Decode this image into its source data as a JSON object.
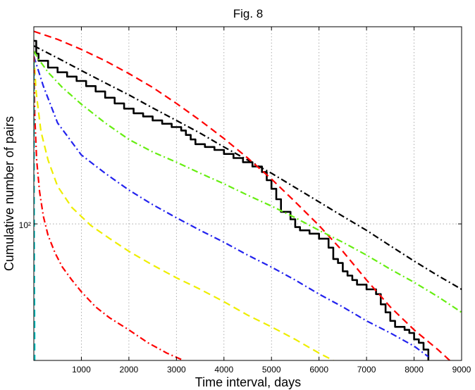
{
  "chart_data": {
    "type": "line",
    "title": "Fig. 8",
    "xlabel": "Time interval, days",
    "ylabel": "Cumulative number of pairs",
    "xlim": [
      0,
      9000
    ],
    "ylim": [
      42,
      350
    ],
    "yscale": "log",
    "grid": true,
    "x_ticks": [
      1000,
      2000,
      3000,
      4000,
      5000,
      6000,
      7000,
      8000,
      9000
    ],
    "x_tick_labels": [
      "1000",
      "2000",
      "3000",
      "4000",
      "5000",
      "6000",
      "7000",
      "8000",
      "9000"
    ],
    "y_ticks": [
      100
    ],
    "y_tick_labels": [
      "10²"
    ],
    "series": [
      {
        "color": "#000000",
        "style": "solid",
        "x": [
          0,
          50,
          100,
          300,
          500,
          700,
          900,
          1100,
          1300,
          1500,
          1700,
          1900,
          2100,
          2300,
          2500,
          2700,
          2900,
          3100,
          3200,
          3300,
          3400,
          3600,
          3800,
          4000,
          4200,
          4400,
          4600,
          4800,
          4900,
          5000,
          5100,
          5200,
          5400,
          5500,
          5600,
          5800,
          6000,
          6200,
          6300,
          6400,
          6500,
          6600,
          6700,
          6800,
          7000,
          7200,
          7300,
          7400,
          7500,
          7600,
          7800,
          7900,
          8000,
          8100,
          8200,
          8300
        ],
        "y": [
          320,
          295,
          282,
          270,
          262,
          255,
          248,
          240,
          232,
          223,
          215,
          208,
          202,
          198,
          193,
          189,
          185,
          181,
          176,
          171,
          166,
          163,
          160,
          156,
          152,
          148,
          144,
          139,
          132,
          125,
          117,
          108,
          103,
          98,
          96,
          94,
          91,
          86,
          80,
          78,
          74,
          72,
          70,
          68,
          66,
          64,
          60,
          57,
          54,
          52,
          51,
          50,
          48,
          47,
          45,
          42
        ]
      },
      {
        "color": "#000000",
        "style": "dashdot",
        "x": [
          0,
          500,
          1000,
          1500,
          2000,
          2500,
          3000,
          3500,
          4000,
          4500,
          5000,
          5500,
          6000,
          6500,
          7000,
          7500,
          8000,
          8500,
          9000
        ],
        "y": [
          310,
          287,
          265,
          245,
          227,
          209,
          193,
          178,
          163,
          150,
          138,
          126,
          115,
          105,
          96,
          87,
          79,
          72,
          66
        ]
      },
      {
        "color": "#ff0000",
        "style": "dashed",
        "x": [
          0,
          500,
          1000,
          1500,
          2000,
          2500,
          3000,
          3500,
          4000,
          4500,
          5000,
          5500,
          6000,
          6500,
          7000,
          7500,
          8000,
          8500,
          8750
        ],
        "y": [
          340,
          323,
          303,
          282,
          260,
          238,
          215,
          193,
          172,
          152,
          133,
          115,
          99,
          84,
          70,
          59,
          51,
          45,
          42
        ]
      },
      {
        "color": "#66ee11",
        "style": "dashdot",
        "x": [
          0,
          100,
          300,
          600,
          1000,
          1500,
          2000,
          2500,
          3000,
          3500,
          4000,
          4500,
          5000,
          5500,
          6000,
          6500,
          7000,
          7500,
          8000,
          8500,
          9000
        ],
        "y": [
          300,
          285,
          262,
          238,
          214,
          190,
          171,
          158,
          148,
          138,
          129,
          120,
          112,
          104,
          96,
          89,
          82,
          75,
          69,
          63,
          57
        ]
      },
      {
        "color": "#2222ee",
        "style": "dashdot",
        "x": [
          0,
          200,
          500,
          1000,
          1500,
          2000,
          2500,
          3000,
          3500,
          4000,
          4500,
          5000,
          5500,
          6000,
          6500,
          7000,
          7500,
          8000,
          8300
        ],
        "y": [
          290,
          240,
          190,
          155,
          138,
          124,
          113,
          104,
          96,
          89,
          82,
          76,
          70,
          64,
          59,
          54,
          50,
          46,
          43
        ]
      },
      {
        "color": "#eeee00",
        "style": "dashed",
        "x": [
          0,
          50,
          150,
          300,
          500,
          800,
          1200,
          1600,
          2000,
          2500,
          3000,
          3500,
          4000,
          4500,
          5000,
          5500,
          6000,
          6300
        ],
        "y": [
          290,
          230,
          180,
          150,
          127,
          111,
          99,
          91,
          84,
          77,
          71,
          66,
          61,
          56,
          52,
          48,
          44,
          42
        ]
      },
      {
        "color": "#ff0000",
        "style": "dashdot",
        "x": [
          0,
          20,
          60,
          120,
          200,
          300,
          450,
          600,
          800,
          1000,
          1300,
          1600,
          2000,
          2400,
          2800,
          3150
        ],
        "y": [
          290,
          200,
          150,
          123,
          105,
          93,
          83,
          76,
          70,
          65,
          59,
          55,
          51,
          47,
          44,
          42
        ]
      },
      {
        "color": "#00cccc",
        "style": "dashed",
        "x": [
          0,
          4,
          8,
          12,
          16,
          20
        ],
        "y": [
          280,
          150,
          100,
          72,
          55,
          42
        ]
      }
    ]
  }
}
